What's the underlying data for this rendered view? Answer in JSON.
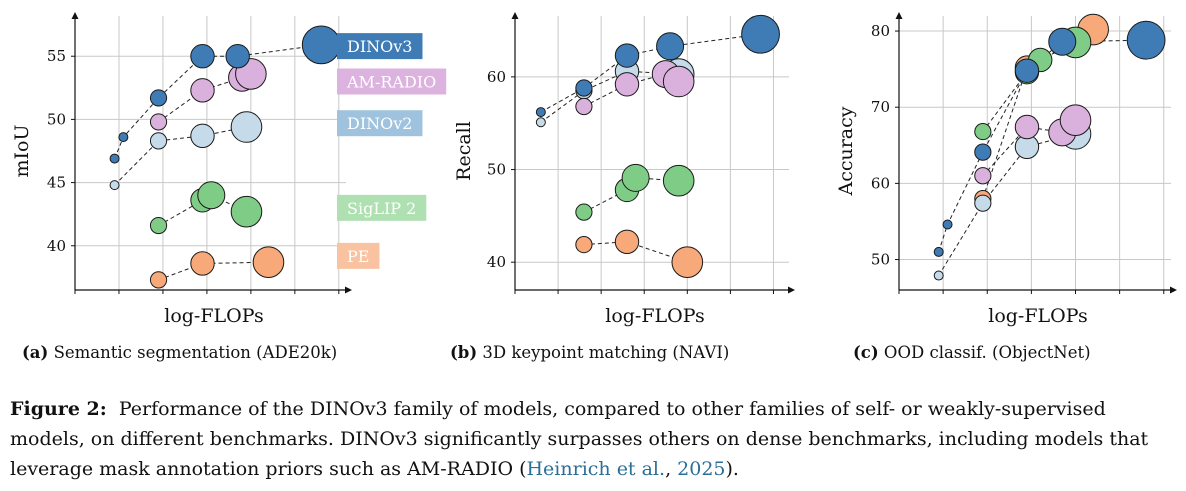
{
  "colors": {
    "DINOv3": "#3f7cb6",
    "AM-RADIO": "#dab0dd",
    "DINOv2": "#c6dbea",
    "SigLIP 2": "#7fcc87",
    "PE": "#f7a97a",
    "legend_DINOv3": "#3f7cb6",
    "legend_AM-RADIO": "#dcb3df",
    "legend_DINOv2": "#9fc3de",
    "legend_SigLIP 2": "#aee0b2",
    "legend_PE": "#f9c3a2",
    "grid": "#c8c8c8",
    "link": "#2a6f97"
  },
  "subcaptions": [
    {
      "letter": "(a)",
      "text": "Semantic segmentation (ADE20k)"
    },
    {
      "letter": "(b)",
      "text": "3D keypoint matching (NAVI)"
    },
    {
      "letter": "(c)",
      "text": "OOD classif. (ObjectNet)"
    }
  ],
  "caption": {
    "label": "Figure 2:",
    "text_before_cite": "Performance of the DINOv3 family of models, compared to other families of self- or weakly-supervised models, on different benchmarks. DINOv3 significantly surpasses others on dense benchmarks, including models that leverage mask annotation priors such as AM-RADIO (",
    "cite_authors": "Heinrich et al.",
    "cite_sep": ", ",
    "cite_year": "2025",
    "text_after_cite": ")."
  },
  "chart_data": [
    {
      "type": "scatter",
      "title": "",
      "xlabel": "log-FLOPs",
      "ylabel": "mIoU",
      "xlim": [
        0,
        6.3
      ],
      "ylim": [
        36.5,
        58.5
      ],
      "yticks": [
        40,
        45,
        50,
        55
      ],
      "xticks": [
        0,
        1,
        2,
        3,
        4,
        5,
        6
      ],
      "grid": true,
      "legend": {
        "placement": "right",
        "entries": [
          "DINOv3",
          "AM-RADIO",
          "DINOv2",
          "SigLIP 2",
          "PE"
        ]
      },
      "legend_y": [
        55.8,
        53.0,
        49.7,
        43.0,
        39.2
      ],
      "series": [
        {
          "name": "DINOv3",
          "points": [
            {
              "x": 0.9,
              "y": 46.9,
              "s": 1
            },
            {
              "x": 1.1,
              "y": 48.6,
              "s": 1
            },
            {
              "x": 1.9,
              "y": 51.7,
              "s": 2
            },
            {
              "x": 2.9,
              "y": 55.0,
              "s": 3
            },
            {
              "x": 3.7,
              "y": 55.0,
              "s": 3
            },
            {
              "x": 5.6,
              "y": 55.9,
              "s": 5
            }
          ]
        },
        {
          "name": "AM-RADIO",
          "points": [
            {
              "x": 1.9,
              "y": 49.8,
              "s": 2
            },
            {
              "x": 2.9,
              "y": 52.3,
              "s": 3
            },
            {
              "x": 3.8,
              "y": 53.3,
              "s": 3.5
            },
            {
              "x": 4.0,
              "y": 53.6,
              "s": 4
            }
          ]
        },
        {
          "name": "DINOv2",
          "points": [
            {
              "x": 0.9,
              "y": 44.8,
              "s": 1
            },
            {
              "x": 1.9,
              "y": 48.3,
              "s": 2
            },
            {
              "x": 2.9,
              "y": 48.7,
              "s": 3
            },
            {
              "x": 3.9,
              "y": 49.4,
              "s": 4
            }
          ]
        },
        {
          "name": "SigLIP 2",
          "points": [
            {
              "x": 1.9,
              "y": 41.6,
              "s": 2
            },
            {
              "x": 2.9,
              "y": 43.6,
              "s": 3
            },
            {
              "x": 3.1,
              "y": 44.0,
              "s": 3.5
            },
            {
              "x": 3.9,
              "y": 42.7,
              "s": 4
            }
          ]
        },
        {
          "name": "PE",
          "points": [
            {
              "x": 1.9,
              "y": 37.3,
              "s": 2
            },
            {
              "x": 2.9,
              "y": 38.6,
              "s": 3
            },
            {
              "x": 4.4,
              "y": 38.7,
              "s": 4
            }
          ]
        }
      ]
    },
    {
      "type": "scatter",
      "title": "",
      "xlabel": "log-FLOPs",
      "ylabel": "Recall",
      "xlim": [
        0,
        6.5
      ],
      "ylim": [
        37,
        67
      ],
      "yticks": [
        40,
        50,
        60
      ],
      "xticks": [
        0,
        1,
        2,
        3,
        4,
        5,
        6
      ],
      "grid": true,
      "series": [
        {
          "name": "DINOv3",
          "points": [
            {
              "x": 0.6,
              "y": 56.2,
              "s": 1
            },
            {
              "x": 1.6,
              "y": 58.8,
              "s": 2
            },
            {
              "x": 2.6,
              "y": 62.3,
              "s": 3
            },
            {
              "x": 3.6,
              "y": 63.3,
              "s": 3.5
            },
            {
              "x": 5.7,
              "y": 64.6,
              "s": 5
            }
          ]
        },
        {
          "name": "AM-RADIO",
          "points": [
            {
              "x": 1.6,
              "y": 56.8,
              "s": 2
            },
            {
              "x": 2.6,
              "y": 59.2,
              "s": 3
            },
            {
              "x": 3.5,
              "y": 60.3,
              "s": 3.5
            },
            {
              "x": 3.8,
              "y": 59.5,
              "s": 4
            }
          ]
        },
        {
          "name": "DINOv2",
          "points": [
            {
              "x": 0.6,
              "y": 55.1,
              "s": 1
            },
            {
              "x": 1.6,
              "y": 58.5,
              "s": 2
            },
            {
              "x": 2.6,
              "y": 60.6,
              "s": 3
            },
            {
              "x": 3.8,
              "y": 60.3,
              "s": 4
            }
          ]
        },
        {
          "name": "SigLIP 2",
          "points": [
            {
              "x": 1.6,
              "y": 45.4,
              "s": 2
            },
            {
              "x": 2.6,
              "y": 47.8,
              "s": 3
            },
            {
              "x": 2.8,
              "y": 49.1,
              "s": 3.5
            },
            {
              "x": 3.8,
              "y": 48.8,
              "s": 4
            }
          ]
        },
        {
          "name": "PE",
          "points": [
            {
              "x": 1.6,
              "y": 41.9,
              "s": 2
            },
            {
              "x": 2.6,
              "y": 42.2,
              "s": 3
            },
            {
              "x": 4.0,
              "y": 40.0,
              "s": 4
            }
          ]
        }
      ]
    },
    {
      "type": "scatter",
      "title": "",
      "xlabel": "log-FLOPs",
      "ylabel": "Accuracy",
      "xlim": [
        0,
        6.3
      ],
      "ylim": [
        46,
        82.5
      ],
      "yticks": [
        50,
        60,
        70,
        80
      ],
      "xticks": [
        0,
        1,
        2,
        3,
        4,
        5,
        6
      ],
      "grid": true,
      "series": [
        {
          "name": "DINOv3",
          "points": [
            {
              "x": 0.9,
              "y": 51.0,
              "s": 1
            },
            {
              "x": 1.1,
              "y": 54.6,
              "s": 1
            },
            {
              "x": 1.9,
              "y": 64.1,
              "s": 2
            },
            {
              "x": 2.9,
              "y": 74.8,
              "s": 3
            },
            {
              "x": 3.7,
              "y": 78.6,
              "s": 3.5
            },
            {
              "x": 5.6,
              "y": 78.8,
              "s": 5
            }
          ]
        },
        {
          "name": "AM-RADIO",
          "points": [
            {
              "x": 1.9,
              "y": 61.0,
              "s": 2
            },
            {
              "x": 2.9,
              "y": 67.4,
              "s": 3
            },
            {
              "x": 3.7,
              "y": 66.7,
              "s": 3.5
            },
            {
              "x": 4.0,
              "y": 68.3,
              "s": 4
            }
          ]
        },
        {
          "name": "DINOv2",
          "points": [
            {
              "x": 0.9,
              "y": 47.9,
              "s": 1
            },
            {
              "x": 1.9,
              "y": 57.4,
              "s": 2
            },
            {
              "x": 2.9,
              "y": 64.8,
              "s": 3
            },
            {
              "x": 4.0,
              "y": 66.5,
              "s": 4
            }
          ]
        },
        {
          "name": "SigLIP 2",
          "points": [
            {
              "x": 1.9,
              "y": 66.8,
              "s": 2
            },
            {
              "x": 2.9,
              "y": 74.6,
              "s": 3
            },
            {
              "x": 3.2,
              "y": 76.2,
              "s": 3
            },
            {
              "x": 4.0,
              "y": 78.5,
              "s": 4
            }
          ]
        },
        {
          "name": "PE",
          "points": [
            {
              "x": 1.9,
              "y": 58.0,
              "s": 2
            },
            {
              "x": 2.9,
              "y": 75.2,
              "s": 3
            },
            {
              "x": 4.4,
              "y": 80.2,
              "s": 4
            }
          ]
        }
      ]
    }
  ]
}
